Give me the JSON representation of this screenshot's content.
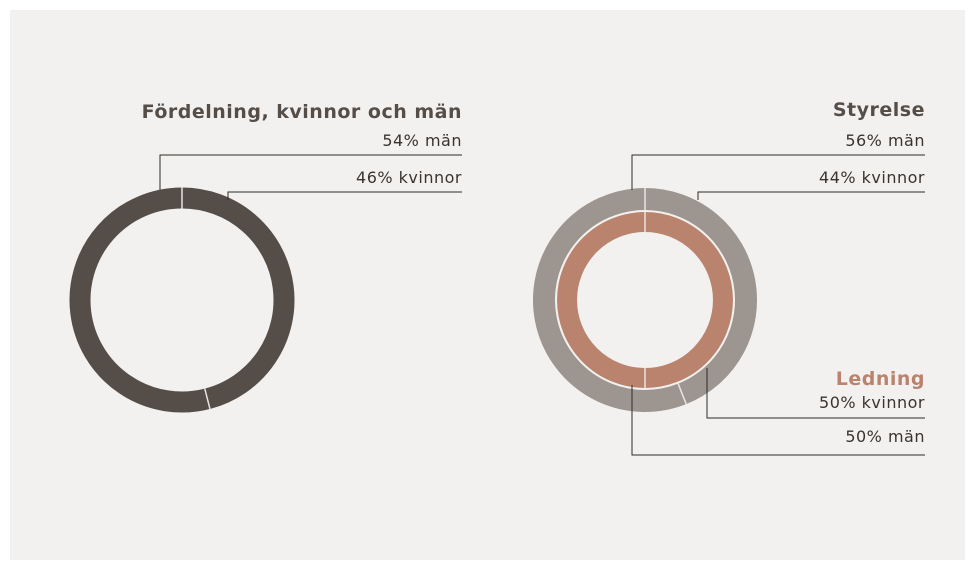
{
  "chart_data": [
    {
      "type": "donut",
      "title": "Fördelning, kvinnor och män",
      "values": [
        54,
        46
      ],
      "value_labels": [
        "54% män",
        "46% kvinnor"
      ],
      "color": "#554d48"
    },
    {
      "type": "donut",
      "series": [
        {
          "name": "Styrelse",
          "values": [
            56,
            44
          ],
          "value_labels": [
            "56% män",
            "44% kvinnor"
          ],
          "color": "#9d9590"
        },
        {
          "name": "Ledning",
          "values": [
            50,
            50
          ],
          "value_labels": [
            "50% män",
            "50% kvinnor"
          ],
          "color": "#b9836d"
        }
      ]
    }
  ]
}
